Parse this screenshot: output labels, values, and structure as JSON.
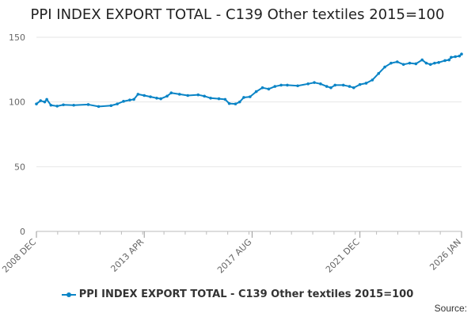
{
  "chart_data": {
    "type": "line",
    "title": "PPI INDEX EXPORT TOTAL - C139 Other textiles 2015=100",
    "xlabel": "",
    "ylabel": "",
    "ylim": [
      0,
      150
    ],
    "yticks": [
      0,
      50,
      100,
      150
    ],
    "x_tick_labels": [
      "2008 DEC",
      "2013 APR",
      "2017 AUG",
      "2021 DEC",
      "2026 JAN"
    ],
    "grid": true,
    "legend_position": "bottom",
    "series": [
      {
        "name": "PPI INDEX EXPORT TOTAL - C139 Other textiles 2015=100",
        "color": "#0a84c6",
        "points": [
          [
            "2008 DEC",
            98.5
          ],
          [
            "2009 FEB",
            101
          ],
          [
            "2009 APR",
            100
          ],
          [
            "2009 MAY",
            102
          ],
          [
            "2009 JUL",
            97.5
          ],
          [
            "2009 OCT",
            96.8
          ],
          [
            "2010 JAN",
            97.8
          ],
          [
            "2010 JUN",
            97.5
          ],
          [
            "2011 JAN",
            98
          ],
          [
            "2011 JUN",
            96.5
          ],
          [
            "2011 DEC",
            97.2
          ],
          [
            "2012 MAR",
            98.5
          ],
          [
            "2012 JUN",
            100.5
          ],
          [
            "2012 SEP",
            101.5
          ],
          [
            "2012 NOV",
            102
          ],
          [
            "2013 JAN",
            106
          ],
          [
            "2013 APR",
            105
          ],
          [
            "2013 JUL",
            104
          ],
          [
            "2013 OCT",
            103
          ],
          [
            "2013 DEC",
            102.5
          ],
          [
            "2014 MAR",
            104.5
          ],
          [
            "2014 MAY",
            107
          ],
          [
            "2014 SEP",
            106
          ],
          [
            "2015 JAN",
            105
          ],
          [
            "2015 JUN",
            105.5
          ],
          [
            "2015 SEP",
            104.5
          ],
          [
            "2015 DEC",
            103
          ],
          [
            "2016 APR",
            102.5
          ],
          [
            "2016 JUL",
            102
          ],
          [
            "2016 SEP",
            98.8
          ],
          [
            "2016 DEC",
            98.5
          ],
          [
            "2017 FEB",
            100
          ],
          [
            "2017 APR",
            103.5
          ],
          [
            "2017 JUL",
            104
          ],
          [
            "2017 OCT",
            108
          ],
          [
            "2018 JAN",
            111
          ],
          [
            "2018 APR",
            110
          ],
          [
            "2018 JUL",
            112
          ],
          [
            "2018 OCT",
            113
          ],
          [
            "2019 JAN",
            113
          ],
          [
            "2019 JUN",
            112.5
          ],
          [
            "2019 NOV",
            114
          ],
          [
            "2020 FEB",
            115
          ],
          [
            "2020 MAY",
            114
          ],
          [
            "2020 AUG",
            112
          ],
          [
            "2020 OCT",
            111
          ],
          [
            "2020 DEC",
            113
          ],
          [
            "2021 APR",
            113
          ],
          [
            "2021 JUL",
            112
          ],
          [
            "2021 SEP",
            111
          ],
          [
            "2021 DEC",
            113.5
          ],
          [
            "2022 MAR",
            114.5
          ],
          [
            "2022 JUN",
            117
          ],
          [
            "2022 SEP",
            122
          ],
          [
            "2022 DEC",
            127
          ],
          [
            "2023 MAR",
            130
          ],
          [
            "2023 JUN",
            131
          ],
          [
            "2023 SEP",
            129
          ],
          [
            "2023 DEC",
            130
          ],
          [
            "2024 MAR",
            129.5
          ],
          [
            "2024 JUN",
            132.5
          ],
          [
            "2024 AUG",
            130
          ],
          [
            "2024 OCT",
            129
          ],
          [
            "2024 DEC",
            130
          ],
          [
            "2025 FEB",
            130.5
          ],
          [
            "2025 MAY",
            132
          ],
          [
            "2025 JUL",
            132.5
          ],
          [
            "2025 AUG",
            134.5
          ],
          [
            "2025 OCT",
            135
          ],
          [
            "2025 DEC",
            135.5
          ],
          [
            "2026 JAN",
            137
          ]
        ]
      }
    ]
  },
  "footer": {
    "source_label": "Source:"
  }
}
